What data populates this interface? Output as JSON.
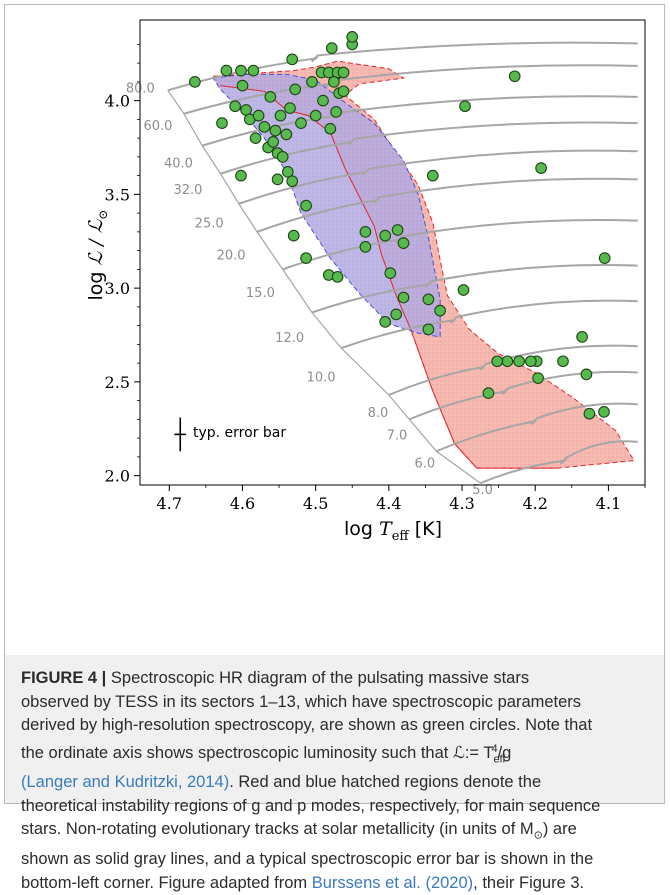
{
  "chart_data": {
    "type": "scatter",
    "xlabel_main": "log ",
    "xlabel_var": "T",
    "xlabel_sub": "eff",
    "xlabel_unit": " [K]",
    "ylabel_main": "log ",
    "ylabel_var": "ℒ / ℒ",
    "ylabel_sun": "⊙",
    "xlim": [
      4.74,
      4.05
    ],
    "ylim": [
      1.95,
      4.43
    ],
    "x_reversed": true,
    "xticks": [
      4.7,
      4.6,
      4.5,
      4.4,
      4.3,
      4.2,
      4.1
    ],
    "xtick_labels": [
      "4.7",
      "4.6",
      "4.5",
      "4.4",
      "4.3",
      "4.2",
      "4.1"
    ],
    "yticks": [
      2.0,
      2.5,
      3.0,
      3.5,
      4.0
    ],
    "ytick_labels": [
      "2.0",
      "2.5",
      "3.0",
      "3.5",
      "4.0"
    ],
    "error_bar_label": "typ. error bar",
    "error_bar": {
      "x": 4.685,
      "y": 2.22,
      "dx": 0.008,
      "dy": 0.09
    },
    "stars": [
      [
        4.665,
        4.1
      ],
      [
        4.622,
        4.16
      ],
      [
        4.602,
        4.16
      ],
      [
        4.585,
        4.16
      ],
      [
        4.532,
        4.22
      ],
      [
        4.628,
        3.88
      ],
      [
        4.61,
        3.97
      ],
      [
        4.6,
        4.08
      ],
      [
        4.595,
        3.95
      ],
      [
        4.59,
        3.9
      ],
      [
        4.582,
        3.8
      ],
      [
        4.578,
        3.92
      ],
      [
        4.57,
        3.86
      ],
      [
        4.565,
        3.75
      ],
      [
        4.562,
        4.02
      ],
      [
        4.558,
        3.78
      ],
      [
        4.555,
        3.84
      ],
      [
        4.552,
        3.72
      ],
      [
        4.548,
        3.92
      ],
      [
        4.545,
        3.7
      ],
      [
        4.54,
        3.82
      ],
      [
        4.535,
        3.96
      ],
      [
        4.528,
        4.06
      ],
      [
        4.52,
        3.88
      ],
      [
        4.505,
        4.1
      ],
      [
        4.5,
        3.92
      ],
      [
        4.49,
        4.0
      ],
      [
        4.48,
        3.85
      ],
      [
        4.472,
        4.14
      ],
      [
        4.492,
        4.15
      ],
      [
        4.482,
        4.15
      ],
      [
        4.47,
        4.15
      ],
      [
        4.462,
        4.15
      ],
      [
        4.475,
        4.1
      ],
      [
        4.468,
        4.04
      ],
      [
        4.462,
        4.05
      ],
      [
        4.472,
        3.94
      ],
      [
        4.478,
        4.28
      ],
      [
        4.45,
        4.3
      ],
      [
        4.45,
        4.34
      ],
      [
        4.602,
        3.6
      ],
      [
        4.552,
        3.58
      ],
      [
        4.538,
        3.62
      ],
      [
        4.532,
        3.57
      ],
      [
        4.513,
        3.44
      ],
      [
        4.53,
        3.28
      ],
      [
        4.513,
        3.16
      ],
      [
        4.482,
        3.07
      ],
      [
        4.47,
        3.06
      ],
      [
        4.432,
        3.3
      ],
      [
        4.432,
        3.22
      ],
      [
        4.405,
        3.28
      ],
      [
        4.398,
        3.08
      ],
      [
        4.388,
        3.31
      ],
      [
        4.38,
        3.24
      ],
      [
        4.38,
        2.95
      ],
      [
        4.405,
        2.82
      ],
      [
        4.39,
        2.86
      ],
      [
        4.346,
        2.78
      ],
      [
        4.346,
        2.94
      ],
      [
        4.33,
        2.88
      ],
      [
        4.298,
        2.99
      ],
      [
        4.296,
        3.97
      ],
      [
        4.34,
        3.6
      ],
      [
        4.228,
        4.13
      ],
      [
        4.192,
        3.64
      ],
      [
        4.105,
        3.16
      ],
      [
        4.136,
        2.74
      ],
      [
        4.162,
        2.61
      ],
      [
        4.198,
        2.61
      ],
      [
        4.206,
        2.61
      ],
      [
        4.222,
        2.61
      ],
      [
        4.238,
        2.61
      ],
      [
        4.252,
        2.61
      ],
      [
        4.196,
        2.52
      ],
      [
        4.13,
        2.54
      ],
      [
        4.126,
        2.33
      ],
      [
        4.106,
        2.34
      ],
      [
        4.264,
        2.44
      ]
    ],
    "track_labels": [
      {
        "text": "80.0",
        "x": 4.717,
        "y": 4.07
      },
      {
        "text": "60.0",
        "x": 4.693,
        "y": 3.87
      },
      {
        "text": "40.0",
        "x": 4.665,
        "y": 3.67
      },
      {
        "text": "32.0",
        "x": 4.652,
        "y": 3.53
      },
      {
        "text": "25.0",
        "x": 4.623,
        "y": 3.35
      },
      {
        "text": "20.0",
        "x": 4.593,
        "y": 3.18
      },
      {
        "text": "15.0",
        "x": 4.553,
        "y": 2.98
      },
      {
        "text": "12.0",
        "x": 4.513,
        "y": 2.74
      },
      {
        "text": "10.0",
        "x": 4.47,
        "y": 2.53
      },
      {
        "text": "8.0",
        "x": 4.398,
        "y": 2.34
      },
      {
        "text": "7.0",
        "x": 4.372,
        "y": 2.22
      },
      {
        "text": "6.0",
        "x": 4.334,
        "y": 2.07
      },
      {
        "text": "5.0",
        "x": 4.255,
        "y": 1.93
      }
    ],
    "tracks": [
      {
        "zams": [
          4.702,
          4.055
        ],
        "tams": [
          4.5,
          4.225
        ],
        "end": [
          4.06,
          4.305
        ]
      },
      {
        "zams": [
          4.68,
          3.93
        ],
        "tams": [
          4.48,
          4.09
        ],
        "end": [
          4.06,
          4.185
        ]
      },
      {
        "zams": [
          4.655,
          3.76
        ],
        "tams": [
          4.47,
          3.92
        ],
        "end": [
          4.06,
          4.02
        ]
      },
      {
        "zams": [
          4.63,
          3.61
        ],
        "tams": [
          4.45,
          3.78
        ],
        "end": [
          4.06,
          3.88
        ]
      },
      {
        "zams": [
          4.605,
          3.45
        ],
        "tams": [
          4.43,
          3.62
        ],
        "end": [
          4.06,
          3.73
        ]
      },
      {
        "zams": [
          4.58,
          3.3
        ],
        "tams": [
          4.415,
          3.47
        ],
        "end": [
          4.06,
          3.58
        ]
      },
      {
        "zams": [
          4.545,
          3.1
        ],
        "tams": [
          4.385,
          3.26
        ],
        "end": [
          4.06,
          3.36
        ]
      },
      {
        "zams": [
          4.505,
          2.87
        ],
        "tams": [
          4.345,
          3.02
        ],
        "end": [
          4.06,
          3.12
        ]
      },
      {
        "zams": [
          4.465,
          2.68
        ],
        "tams": [
          4.31,
          2.83
        ],
        "end": [
          4.06,
          2.93
        ]
      },
      {
        "zams": [
          4.4,
          2.43
        ],
        "tams": [
          4.27,
          2.58
        ],
        "end": [
          4.06,
          2.69
        ]
      },
      {
        "zams": [
          4.372,
          2.3
        ],
        "tams": [
          4.24,
          2.45
        ],
        "end": [
          4.06,
          2.55
        ]
      },
      {
        "zams": [
          4.335,
          2.13
        ],
        "tams": [
          4.2,
          2.29
        ],
        "end": [
          4.06,
          2.38
        ]
      },
      {
        "zams": [
          4.275,
          1.96
        ],
        "tams": [
          4.16,
          2.08
        ],
        "end": [
          4.06,
          2.18
        ]
      }
    ],
    "g_mode_region": [
      [
        4.64,
        4.13
      ],
      [
        4.53,
        4.16
      ],
      [
        4.5,
        4.18
      ],
      [
        4.47,
        4.21
      ],
      [
        4.4,
        4.17
      ],
      [
        4.38,
        4.12
      ],
      [
        4.44,
        4.09
      ],
      [
        4.46,
        4.03
      ],
      [
        4.42,
        3.9
      ],
      [
        4.39,
        3.72
      ],
      [
        4.36,
        3.55
      ],
      [
        4.34,
        3.35
      ],
      [
        4.33,
        3.15
      ],
      [
        4.32,
        2.96
      ],
      [
        4.29,
        2.78
      ],
      [
        4.25,
        2.65
      ],
      [
        4.2,
        2.55
      ],
      [
        4.15,
        2.42
      ],
      [
        4.09,
        2.24
      ],
      [
        4.065,
        2.08
      ],
      [
        4.17,
        2.04
      ],
      [
        4.28,
        2.04
      ],
      [
        4.31,
        2.17
      ],
      [
        4.34,
        2.45
      ],
      [
        4.36,
        2.67
      ],
      [
        4.37,
        2.78
      ],
      [
        4.39,
        2.96
      ],
      [
        4.41,
        3.18
      ],
      [
        4.42,
        3.33
      ],
      [
        4.46,
        3.64
      ],
      [
        4.48,
        3.83
      ],
      [
        4.51,
        3.92
      ],
      [
        4.54,
        3.95
      ],
      [
        4.57,
        4.05
      ],
      [
        4.63,
        4.08
      ]
    ],
    "p_mode_region": [
      [
        4.64,
        4.12
      ],
      [
        4.6,
        4.14
      ],
      [
        4.54,
        4.14
      ],
      [
        4.5,
        4.11
      ],
      [
        4.46,
        3.99
      ],
      [
        4.42,
        3.88
      ],
      [
        4.38,
        3.68
      ],
      [
        4.36,
        3.5
      ],
      [
        4.345,
        3.25
      ],
      [
        4.33,
        2.94
      ],
      [
        4.33,
        2.74
      ],
      [
        4.36,
        2.76
      ],
      [
        4.4,
        2.81
      ],
      [
        4.44,
        2.97
      ],
      [
        4.48,
        3.16
      ],
      [
        4.52,
        3.4
      ],
      [
        4.54,
        3.62
      ],
      [
        4.57,
        3.8
      ],
      [
        4.6,
        3.94
      ],
      [
        4.63,
        4.06
      ]
    ],
    "colors": {
      "g_fill": "#f6b3aa",
      "g_edge": "#e2262a",
      "p_fill": "#b8bff0",
      "p_edge": "#3040d8",
      "overlap_fill": "#b390cc",
      "star_fill": "#58ba4e",
      "star_edge": "#1c4416",
      "track": "#a6a6a6",
      "track_label": "#8e8e8e"
    }
  },
  "caption": {
    "lines": [
      {
        "parts": [
          {
            "t": "FIGURE 4 | ",
            "c": "label"
          },
          {
            "t": "Spectroscopic HR diagram of the pulsating massive stars",
            "c": ""
          }
        ]
      },
      {
        "parts": [
          {
            "t": "observed by TESS in its sectors 1–13, which have spectroscopic parameters",
            "c": ""
          }
        ]
      },
      {
        "parts": [
          {
            "t": "derived by high-resolution spectroscopy, are shown as green circles. Note that",
            "c": ""
          }
        ]
      },
      {
        "parts": [
          {
            "t": "the ordinate axis shows spectroscopic luminosity such that ℒ:= T",
            "c": ""
          },
          {
            "t": "eff",
            "c": "sub"
          },
          {
            "t": "4",
            "c": "sup"
          },
          {
            "t": "/g",
            "c": ""
          }
        ]
      },
      {
        "parts": [
          {
            "t": "(Langer and Kudritzki, 2014)",
            "c": "ref"
          },
          {
            "t": ". Red and blue hatched regions denote the",
            "c": ""
          }
        ]
      },
      {
        "parts": [
          {
            "t": "theoretical instability regions of g and p modes, respectively, for main sequence",
            "c": ""
          }
        ]
      },
      {
        "parts": [
          {
            "t": "stars. Non-rotating evolutionary tracks at solar metallicity (in units of M",
            "c": ""
          },
          {
            "t": "⊙",
            "c": "sub"
          },
          {
            "t": ") are",
            "c": ""
          }
        ]
      },
      {
        "parts": [
          {
            "t": "shown as solid gray lines, and a typical spectroscopic error bar is shown in the",
            "c": ""
          }
        ]
      },
      {
        "parts": [
          {
            "t": "bottom-left corner. Figure adapted from ",
            "c": ""
          },
          {
            "t": "Burssens et al. (2020)",
            "c": "ref"
          },
          {
            "t": ", their Figure 3.",
            "c": ""
          }
        ]
      }
    ]
  }
}
